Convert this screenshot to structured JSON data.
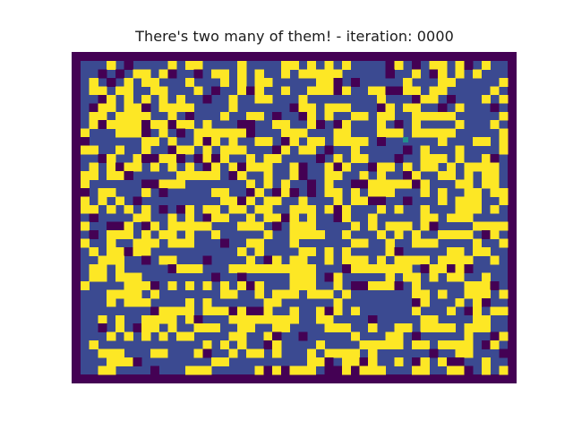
{
  "chart_data": {
    "type": "heatmap",
    "title": "There's two many of them! - iteration: 0000",
    "iteration": "0000",
    "grid": {
      "rows": 37,
      "cols": 49
    },
    "colormap": "viridis",
    "palette": {
      "wall": "#440154",
      "empty": "#3b4a91",
      "agent_a": "#fde725",
      "agent_b": "#440154",
      "highlight": "#21918c"
    },
    "border_value": "wall",
    "cells": "seeded random pattern of agent_a / agent_b / empty, one highlighted cell",
    "xlabel": "",
    "ylabel": "",
    "axes_visible": false
  }
}
